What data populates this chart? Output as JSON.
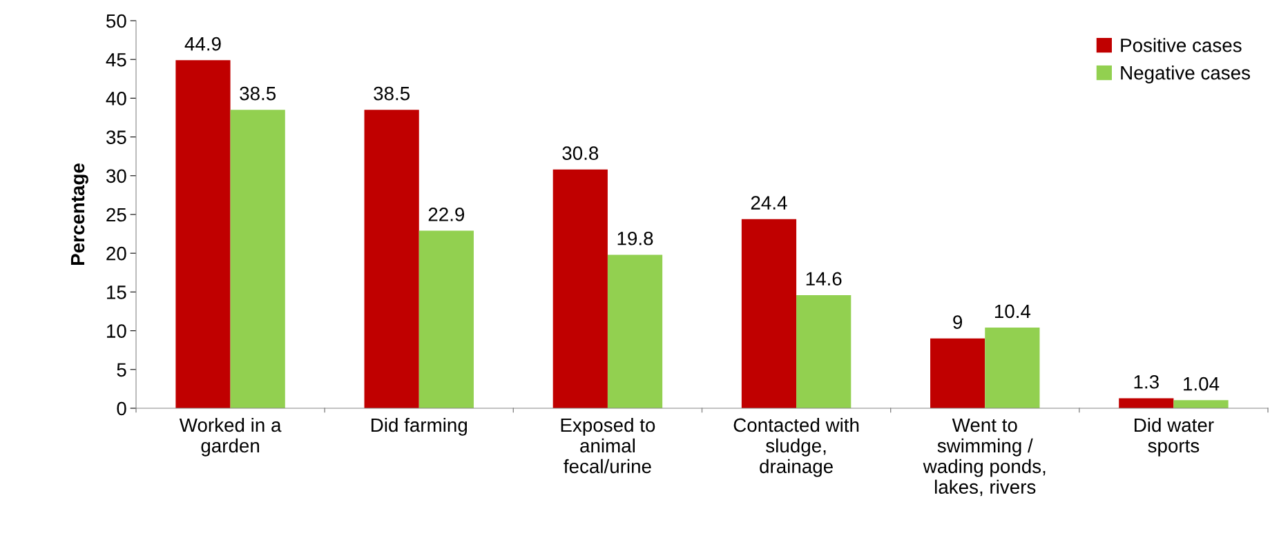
{
  "chart_data": {
    "type": "bar",
    "ylabel": "Percentage",
    "categories": [
      "Worked in a\ngarden",
      "Did farming",
      "Exposed to\nanimal\nfecal/urine",
      "Contacted with\nsludge,\ndrainage",
      "Went to\nswimming /\nwading ponds,\nlakes, rivers",
      "Did water\nsports"
    ],
    "series": [
      {
        "name": "Positive cases",
        "color": "#c00000",
        "values": [
          44.9,
          38.5,
          30.8,
          24.4,
          9,
          1.3
        ]
      },
      {
        "name": "Negative cases",
        "color": "#92d050",
        "values": [
          38.5,
          22.9,
          19.8,
          14.6,
          10.4,
          1.04
        ]
      }
    ],
    "ylim": [
      0,
      50
    ],
    "yticks": [
      0,
      5,
      10,
      15,
      20,
      25,
      30,
      35,
      40,
      45,
      50
    ],
    "data_labels": true,
    "legend": "top right"
  }
}
